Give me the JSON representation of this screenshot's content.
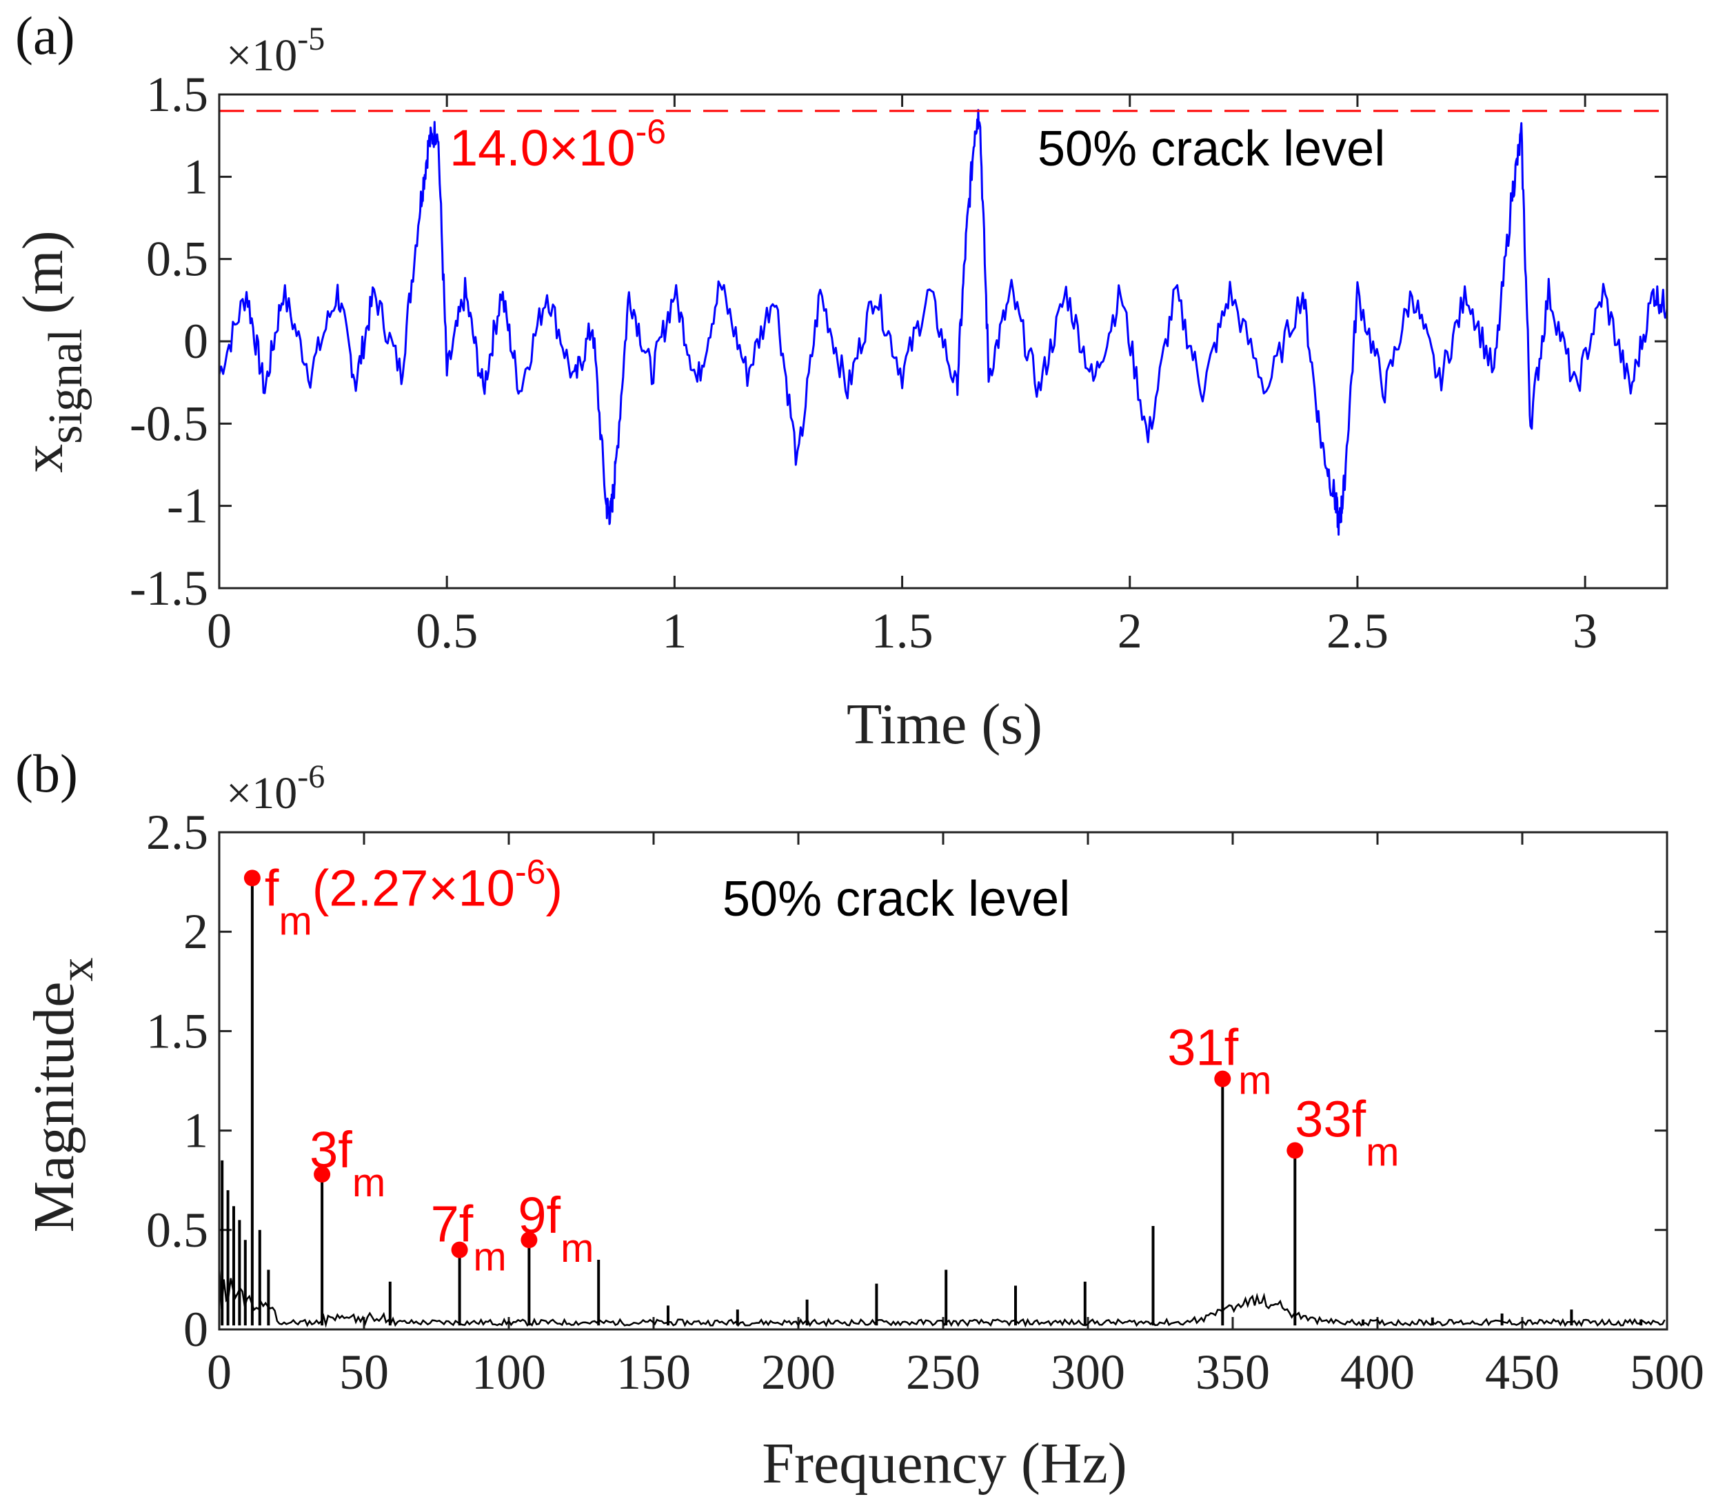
{
  "chart_data": [
    {
      "type": "line",
      "panel_label": "(a)",
      "xlabel": "Time (s)",
      "ylabel": "x",
      "ylabel_sub": "signal",
      "ylabel_unit": " (m)",
      "y_multiplier": {
        "base": "×10",
        "exponent": "-5"
      },
      "xlim": [
        0,
        3.18
      ],
      "ylim": [
        -1.5,
        1.5
      ],
      "x_ticks": [
        {
          "v": 0,
          "label": "0"
        },
        {
          "v": 0.5,
          "label": "0.5"
        },
        {
          "v": 1,
          "label": "1"
        },
        {
          "v": 1.5,
          "label": "1.5"
        },
        {
          "v": 2,
          "label": "2"
        },
        {
          "v": 2.5,
          "label": "2.5"
        },
        {
          "v": 3,
          "label": "3"
        }
      ],
      "y_ticks": [
        {
          "v": 1.5,
          "label": "1.5"
        },
        {
          "v": 1,
          "label": "1"
        },
        {
          "v": 0.5,
          "label": "0.5"
        },
        {
          "v": 0,
          "label": "0"
        },
        {
          "v": -0.5,
          "label": "-0.5"
        },
        {
          "v": -1,
          "label": "-1"
        },
        {
          "v": -1.5,
          "label": "-1.5"
        }
      ],
      "threshold": {
        "value": 1.4,
        "color": "#ff0000",
        "style": "dashed"
      },
      "annotation": {
        "base": "14.0×10",
        "exponent": "-6"
      },
      "note": "50% crack level",
      "series": [
        {
          "name": "x_signal",
          "color": "#0000ff",
          "x": [
            0,
            0.06,
            0.1,
            0.14,
            0.2,
            0.26,
            0.3,
            0.34,
            0.4,
            0.44,
            0.46,
            0.48,
            0.5,
            0.54,
            0.58,
            0.62,
            0.66,
            0.72,
            0.78,
            0.82,
            0.85,
            0.86,
            0.87,
            0.9,
            0.95,
            1.0,
            1.05,
            1.1,
            1.16,
            1.22,
            1.27,
            1.32,
            1.38,
            1.44,
            1.5,
            1.56,
            1.62,
            1.64,
            1.66,
            1.67,
            1.69,
            1.74,
            1.8,
            1.86,
            1.92,
            1.98,
            2.04,
            2.1,
            2.16,
            2.22,
            2.3,
            2.38,
            2.42,
            2.45,
            2.46,
            2.47,
            2.5,
            2.56,
            2.62,
            2.68,
            2.74,
            2.8,
            2.84,
            2.86,
            2.88,
            2.92,
            2.98,
            3.04,
            3.1,
            3.15,
            3.18
          ],
          "y": [
            -0.2,
            0.3,
            -0.3,
            0.3,
            -0.2,
            0.3,
            -0.25,
            0.3,
            -0.2,
            0.8,
            1.2,
            1.3,
            -0.2,
            0.3,
            -0.3,
            0.3,
            -0.3,
            0.3,
            -0.25,
            0.1,
            -1.0,
            -1.05,
            -0.8,
            0.3,
            -0.2,
            0.3,
            -0.25,
            0.35,
            -0.2,
            0.3,
            -0.75,
            0.3,
            -0.3,
            0.3,
            -0.2,
            0.3,
            -0.3,
            0.6,
            1.3,
            1.4,
            -0.2,
            0.3,
            -0.3,
            0.3,
            -0.25,
            0.3,
            -0.6,
            0.3,
            -0.3,
            0.3,
            -0.3,
            0.3,
            -0.6,
            -0.95,
            -1.12,
            -0.9,
            0.3,
            -0.3,
            0.3,
            -0.25,
            0.3,
            -0.2,
            0.9,
            1.25,
            -0.5,
            0.3,
            -0.3,
            0.3,
            -0.3,
            0.3,
            0.2
          ]
        }
      ]
    },
    {
      "type": "line",
      "panel_label": "(b)",
      "xlabel": "Frequency (Hz)",
      "ylabel": "Magnitude",
      "ylabel_sub": "x",
      "y_multiplier": {
        "base": "×10",
        "exponent": "-6"
      },
      "xlim": [
        0,
        500
      ],
      "ylim": [
        0,
        2.5
      ],
      "x_ticks": [
        {
          "v": 0,
          "label": "0"
        },
        {
          "v": 50,
          "label": "50"
        },
        {
          "v": 100,
          "label": "100"
        },
        {
          "v": 150,
          "label": "150"
        },
        {
          "v": 200,
          "label": "200"
        },
        {
          "v": 250,
          "label": "250"
        },
        {
          "v": 300,
          "label": "300"
        },
        {
          "v": 350,
          "label": "350"
        },
        {
          "v": 400,
          "label": "400"
        },
        {
          "v": 450,
          "label": "450"
        },
        {
          "v": 500,
          "label": "500"
        }
      ],
      "y_ticks": [
        {
          "v": 2.5,
          "label": "2.5"
        },
        {
          "v": 2,
          "label": "2"
        },
        {
          "v": 1.5,
          "label": "1.5"
        },
        {
          "v": 1,
          "label": "1"
        },
        {
          "v": 0.5,
          "label": "0.5"
        },
        {
          "v": 0,
          "label": "0"
        }
      ],
      "note": "50% crack level",
      "series": [
        {
          "name": "spectrum_peaks",
          "color": "#000000",
          "peaks": [
            {
              "f": 1,
              "mag": 0.85
            },
            {
              "f": 3,
              "mag": 0.7
            },
            {
              "f": 5,
              "mag": 0.62
            },
            {
              "f": 7,
              "mag": 0.55
            },
            {
              "f": 9,
              "mag": 0.45
            },
            {
              "f": 11.4,
              "mag": 2.27
            },
            {
              "f": 14,
              "mag": 0.5
            },
            {
              "f": 17,
              "mag": 0.3
            },
            {
              "f": 35.5,
              "mag": 0.78
            },
            {
              "f": 59,
              "mag": 0.24
            },
            {
              "f": 83,
              "mag": 0.4
            },
            {
              "f": 107,
              "mag": 0.45
            },
            {
              "f": 131,
              "mag": 0.35
            },
            {
              "f": 155,
              "mag": 0.12
            },
            {
              "f": 179,
              "mag": 0.1
            },
            {
              "f": 203,
              "mag": 0.15
            },
            {
              "f": 227,
              "mag": 0.23
            },
            {
              "f": 251,
              "mag": 0.3
            },
            {
              "f": 275,
              "mag": 0.22
            },
            {
              "f": 299,
              "mag": 0.24
            },
            {
              "f": 322.5,
              "mag": 0.52
            },
            {
              "f": 346.5,
              "mag": 1.26
            },
            {
              "f": 371.5,
              "mag": 0.9
            },
            {
              "f": 395,
              "mag": 0.05
            },
            {
              "f": 419,
              "mag": 0.06
            },
            {
              "f": 443,
              "mag": 0.08
            },
            {
              "f": 467,
              "mag": 0.1
            },
            {
              "f": 491,
              "mag": 0.05
            }
          ]
        }
      ],
      "markers": [
        {
          "f": 11.4,
          "mag": 2.27,
          "label": "f",
          "sub": "m",
          "suffix": "(2.27×10",
          "sup": "-6",
          "tail": ")"
        },
        {
          "f": 35.5,
          "mag": 0.78,
          "label": "3f",
          "sub": "m"
        },
        {
          "f": 83,
          "mag": 0.4,
          "label": "7f",
          "sub": "m"
        },
        {
          "f": 107,
          "mag": 0.45,
          "label": "9f",
          "sub": "m"
        },
        {
          "f": 346.5,
          "mag": 1.26,
          "label": "31f",
          "sub": "m"
        },
        {
          "f": 371.5,
          "mag": 0.9,
          "label": "33f",
          "sub": "m"
        }
      ],
      "marker_color": "#ff0000"
    }
  ]
}
